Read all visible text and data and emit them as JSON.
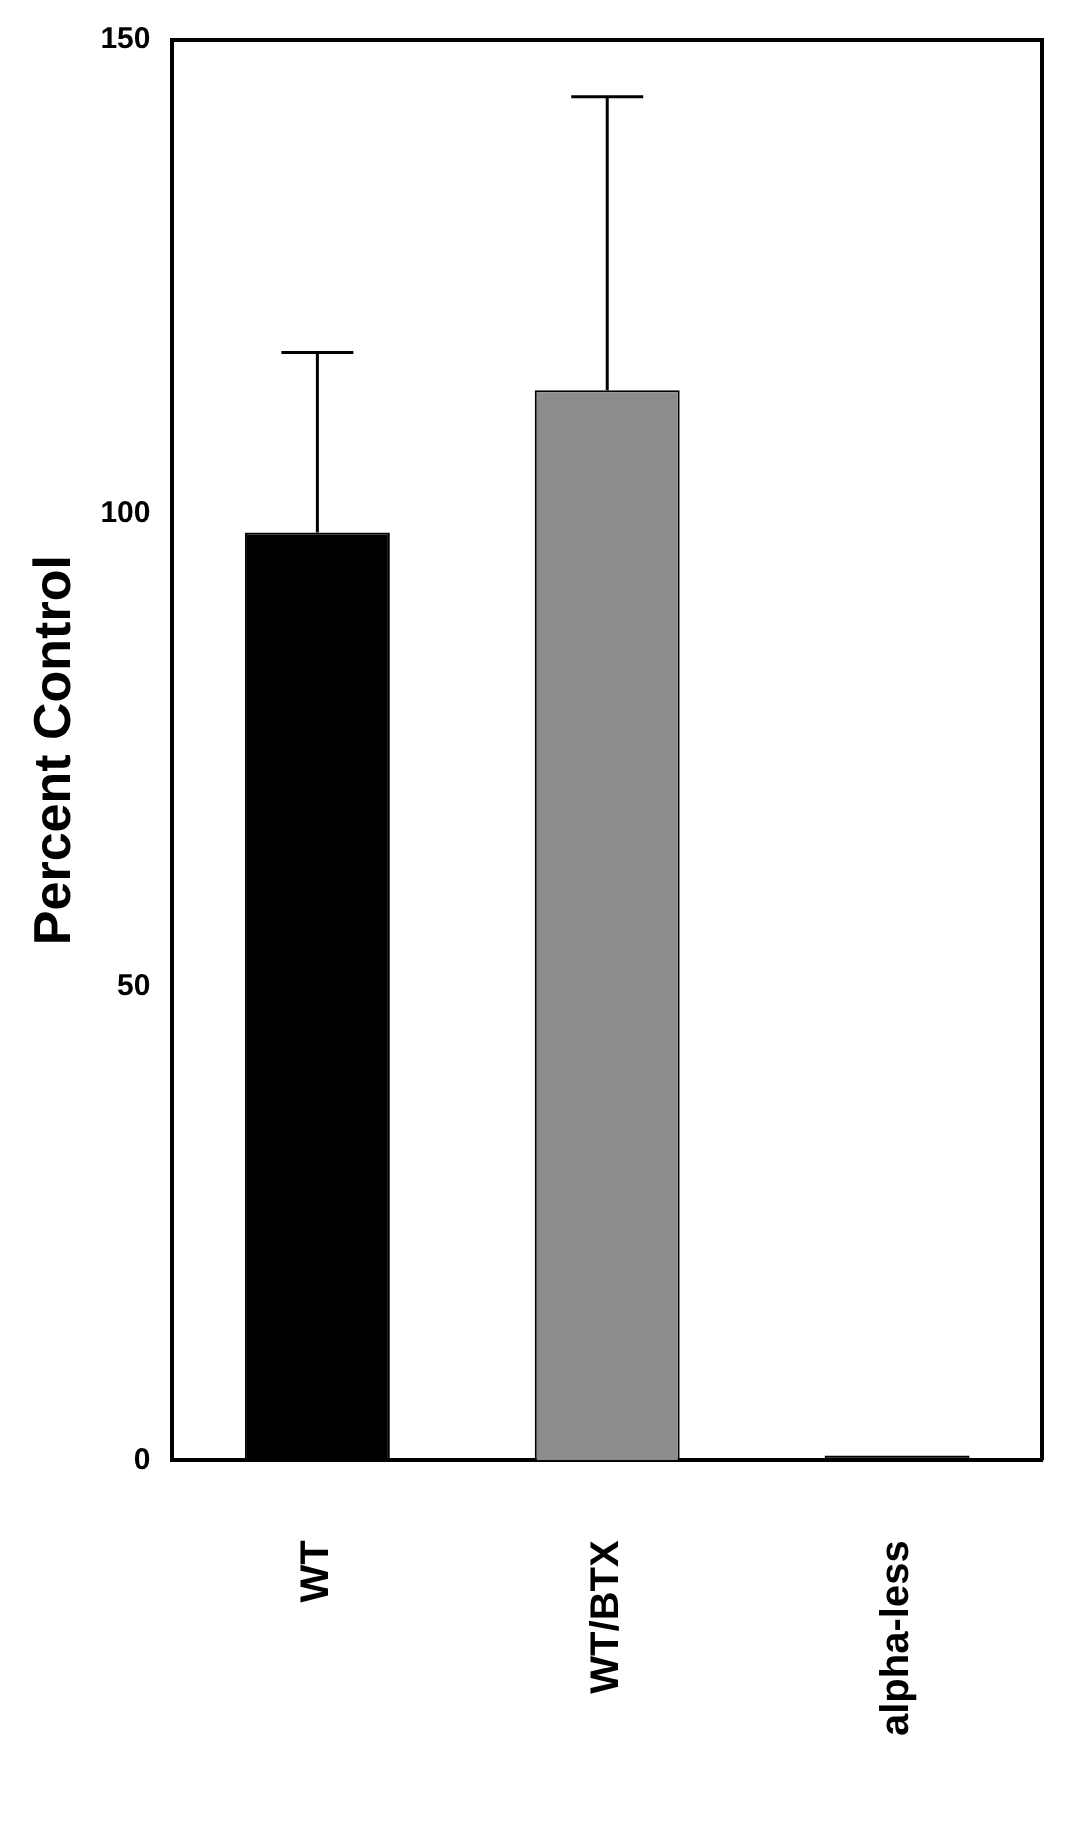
{
  "chart_data": {
    "type": "bar",
    "ylabel": "Percent Control",
    "categories": [
      "WT",
      "WT/BTX",
      "alpha-less"
    ],
    "values": [
      98,
      113,
      0.5
    ],
    "colors": [
      "#000000",
      "#8c8c8c",
      "#000000"
    ],
    "errors": [
      [
        98,
        117
      ],
      [
        113,
        144
      ],
      null
    ],
    "ylim": [
      0,
      150
    ],
    "yticks": [
      0,
      50,
      100,
      150
    ],
    "grid": false,
    "legend": false
  }
}
